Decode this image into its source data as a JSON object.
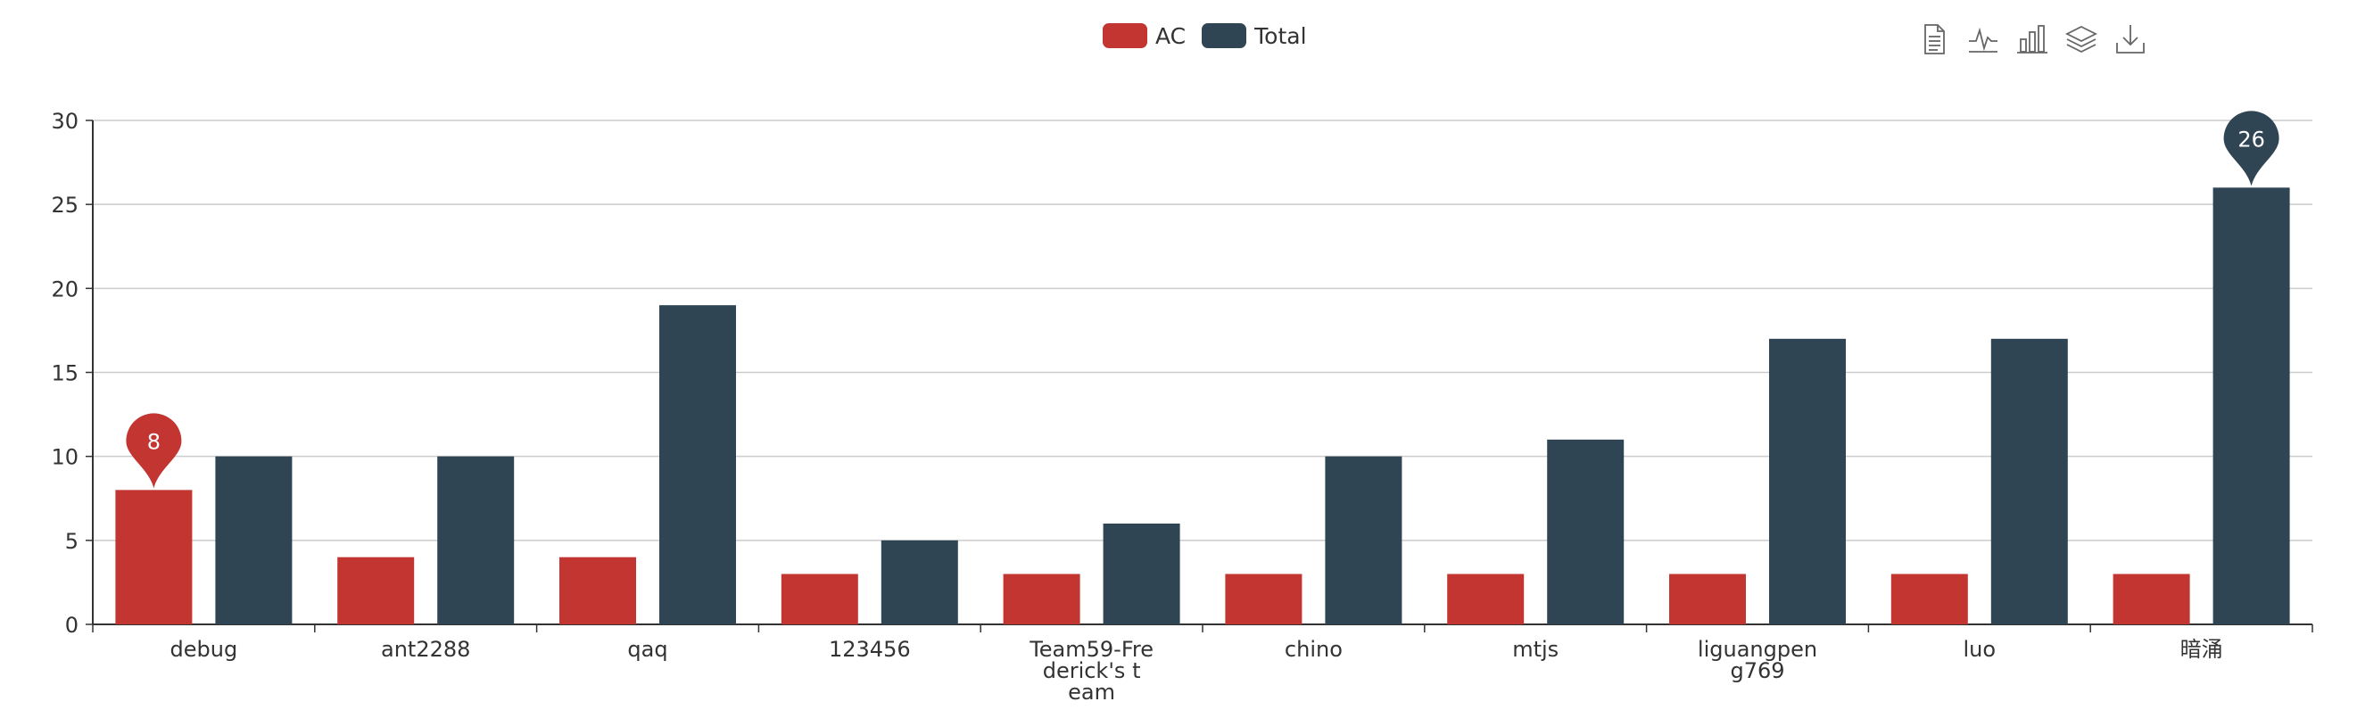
{
  "legend": {
    "ac_label": "AC",
    "total_label": "Total"
  },
  "toolbox": {
    "icons": [
      "data-view-icon",
      "line-chart-icon",
      "bar-chart-icon",
      "stack-icon",
      "save-image-icon"
    ]
  },
  "colors": {
    "ac": "#c23531",
    "total": "#2f4554",
    "grid": "#cccccc",
    "axis": "#333333"
  },
  "chart_data": {
    "type": "bar",
    "categories": [
      "debug",
      "ant2288",
      "qaq",
      "123456",
      "Team59-Frederick's team",
      "chino",
      "mtjs",
      "liguangpeng769",
      "luo",
      "暗涌"
    ],
    "category_display": [
      "debug",
      "ant2288",
      "qaq",
      "123456",
      "Team59-Fre\nderick's t\neam",
      "chino",
      "mtjs",
      "liguangpen\ng769",
      "luo",
      "暗涌"
    ],
    "series": [
      {
        "name": "AC",
        "values": [
          8,
          4,
          4,
          3,
          3,
          3,
          3,
          3,
          3,
          3
        ],
        "max_marker": {
          "index": 0,
          "label": "8"
        }
      },
      {
        "name": "Total",
        "values": [
          10,
          10,
          19,
          5,
          6,
          10,
          11,
          17,
          17,
          26
        ],
        "max_marker": {
          "index": 9,
          "label": "26"
        }
      }
    ],
    "ylim": [
      0,
      30
    ],
    "yticks": [
      "0",
      "5",
      "10",
      "15",
      "20",
      "25",
      "30"
    ],
    "grid": true,
    "legend_position": "top-center"
  }
}
